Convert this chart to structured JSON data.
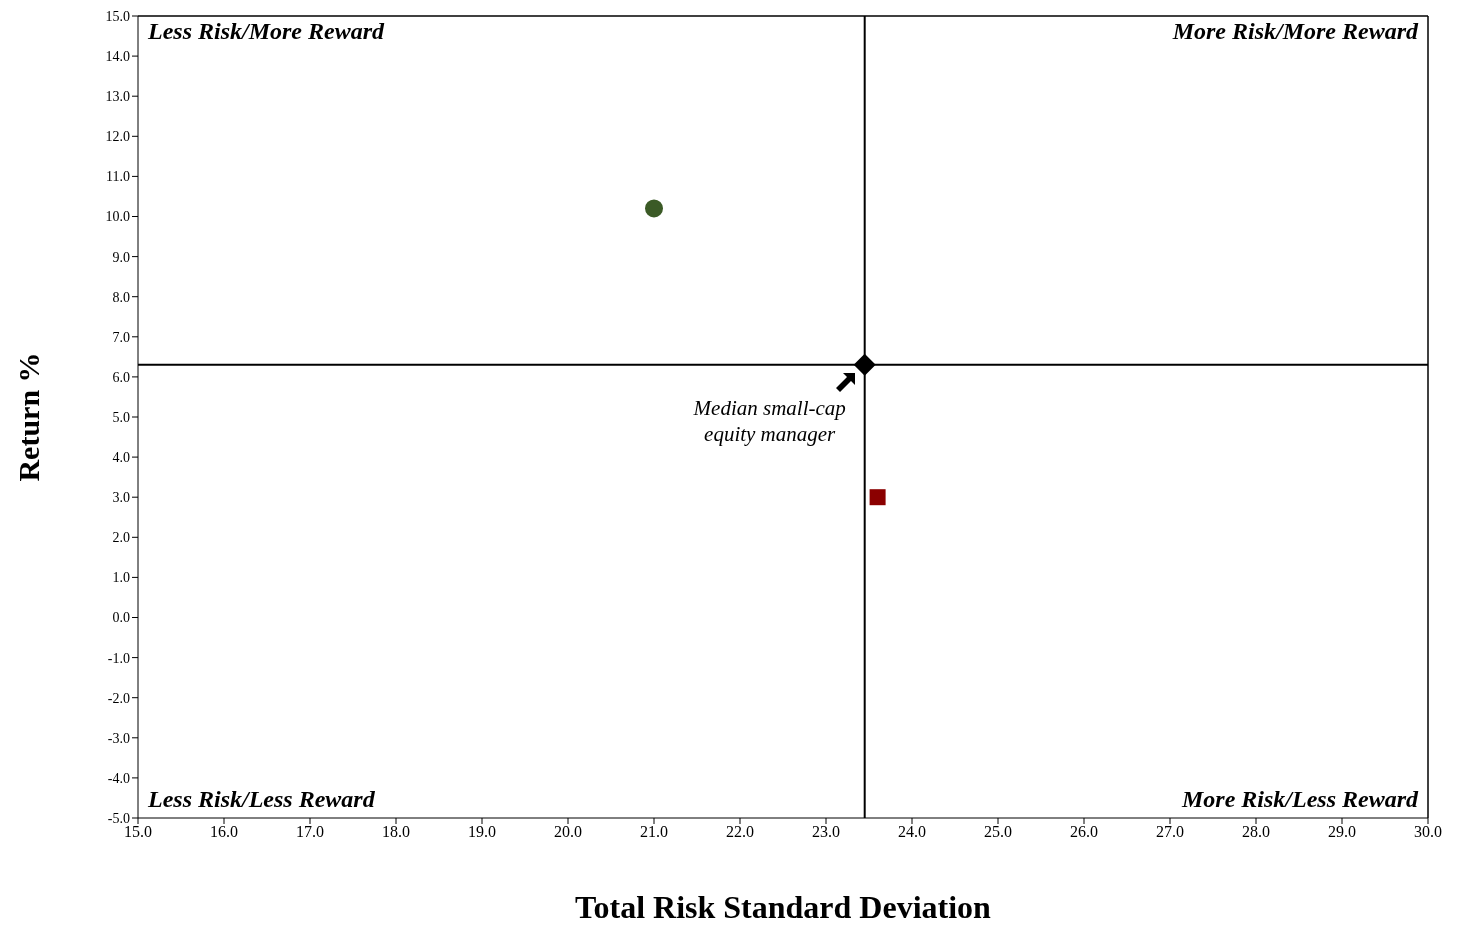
{
  "chart_data": {
    "type": "scatter",
    "xlabel": "Total Risk Standard Deviation",
    "ylabel": "Return %",
    "xlim": [
      15,
      30
    ],
    "xticks": [
      {
        "value": 15,
        "label": "15.0"
      },
      {
        "value": 16,
        "label": "16.0"
      },
      {
        "value": 17,
        "label": "17.0"
      },
      {
        "value": 18,
        "label": "18.0"
      },
      {
        "value": 19,
        "label": "19.0"
      },
      {
        "value": 20,
        "label": "20.0"
      },
      {
        "value": 21,
        "label": "21.0"
      },
      {
        "value": 22,
        "label": "22.0"
      },
      {
        "value": 23,
        "label": "23.0"
      },
      {
        "value": 24,
        "label": "24.0"
      },
      {
        "value": 25,
        "label": "25.0"
      },
      {
        "value": 26,
        "label": "26.0"
      },
      {
        "value": 27,
        "label": "27.0"
      },
      {
        "value": 28,
        "label": "28.0"
      },
      {
        "value": 29,
        "label": "29.0"
      },
      {
        "value": 30,
        "label": "30.0"
      }
    ],
    "ylim": [
      -5,
      15
    ],
    "yticks": [
      {
        "value": -5,
        "label": "-5.0"
      },
      {
        "value": -4,
        "label": "-4.0"
      },
      {
        "value": -3,
        "label": "-3.0"
      },
      {
        "value": -2,
        "label": "-2.0"
      },
      {
        "value": -1,
        "label": "-1.0"
      },
      {
        "value": 0,
        "label": "0.0"
      },
      {
        "value": 1,
        "label": "1.0"
      },
      {
        "value": 2,
        "label": "2.0"
      },
      {
        "value": 3,
        "label": "3.0"
      },
      {
        "value": 4,
        "label": "4.0"
      },
      {
        "value": 5,
        "label": "5.0"
      },
      {
        "value": 6,
        "label": "6.0"
      },
      {
        "value": 7,
        "label": "7.0"
      },
      {
        "value": 8,
        "label": "8.0"
      },
      {
        "value": 9,
        "label": "9.0"
      },
      {
        "value": 10,
        "label": "10.0"
      },
      {
        "value": 11,
        "label": "11.0"
      },
      {
        "value": 12,
        "label": "12.0"
      },
      {
        "value": 13,
        "label": "13.0"
      },
      {
        "value": 14,
        "label": "14.0"
      },
      {
        "value": 15,
        "label": "15.0"
      }
    ],
    "grid": false,
    "series": [
      {
        "color": "#3b5a26",
        "marker": "circle",
        "x": [
          21.0
        ],
        "values": [
          10.2
        ]
      },
      {
        "color": "#8b0000",
        "marker": "square",
        "x": [
          23.6
        ],
        "values": [
          3.0
        ]
      },
      {
        "color": "#000000",
        "marker": "diamond",
        "x": [
          23.45
        ],
        "values": [
          6.3
        ]
      }
    ],
    "ref_lines": [
      {
        "axis": "x",
        "value": 23.45,
        "color": "#000000"
      },
      {
        "axis": "y",
        "value": 6.3,
        "color": "#000000"
      }
    ],
    "annotations": [
      "Less Risk/More Reward",
      "More Risk/More Reward",
      "Less Risk/Less Reward",
      "More Risk/Less Reward",
      {
        "text": "Median small-cap equity manager",
        "x": 23.45,
        "y": 6.3
      }
    ]
  }
}
